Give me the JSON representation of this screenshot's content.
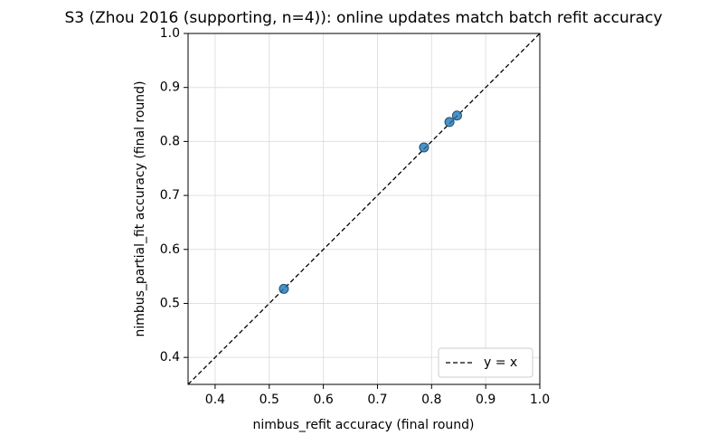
{
  "chart_data": {
    "type": "scatter",
    "title": "S3 (Zhou 2016 (supporting, n=4)): online updates match batch refit accuracy",
    "x_label": "nimbus_refit accuracy (final round)",
    "y_label": "nimbus_partial_fit accuracy (final round)",
    "x": [
      0.527,
      0.786,
      0.833,
      0.847
    ],
    "values": [
      0.527,
      0.789,
      0.836,
      0.848
    ],
    "color": "#1f77b4",
    "reference_line": {
      "label": "y = x",
      "color": "#000000"
    },
    "xlim": [
      0.35,
      1.0
    ],
    "ylim": [
      0.35,
      1.0
    ],
    "xticks": [
      0.4,
      0.5,
      0.6,
      0.7,
      0.8,
      0.9,
      {
        "value": 1.0,
        "label": "1.0"
      }
    ],
    "yticks": [
      0.4,
      0.5,
      0.6,
      0.7,
      0.8,
      0.9,
      {
        "value": 1.0,
        "label": "1.0"
      }
    ],
    "grid": true,
    "legend_position": "lower right"
  }
}
